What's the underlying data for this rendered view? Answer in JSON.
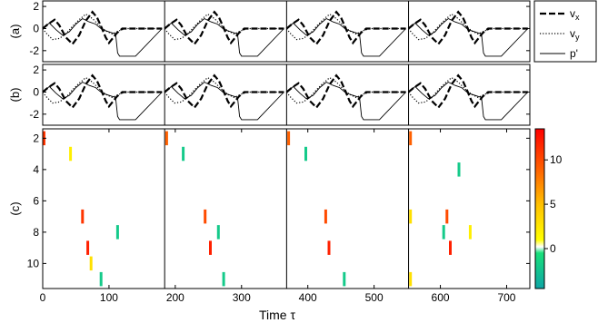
{
  "chart_data": [
    {
      "panel_label": "(a)",
      "type": "line",
      "xlim": [
        0,
        735
      ],
      "ylim": [
        -3,
        2.5
      ],
      "yticks": [
        2,
        0,
        -2
      ],
      "series": [
        {
          "name": "v",
          "subscript": "x",
          "style": "dashed",
          "x": [
            0,
            8,
            18,
            25,
            35,
            45,
            55,
            65,
            75,
            82,
            88,
            95,
            100,
            112,
            120,
            130,
            180
          ],
          "y": [
            0,
            0.4,
            0.8,
            0.3,
            -0.8,
            -1.4,
            -0.6,
            0.7,
            1.5,
            1.0,
            0.2,
            -0.8,
            -1.3,
            -0.4,
            0,
            0,
            0
          ]
        },
        {
          "name": "v",
          "subscript": "y",
          "style": "dotted",
          "x": [
            0,
            5,
            15,
            25,
            35,
            45,
            55,
            65,
            75,
            85,
            95,
            105,
            115,
            125,
            180
          ],
          "y": [
            0,
            -0.4,
            -1.0,
            -0.9,
            -0.5,
            0.2,
            0.8,
            1.3,
            0.9,
            0.3,
            -0.2,
            -0.5,
            -0.2,
            0,
            0
          ]
        },
        {
          "name": "p'",
          "subscript": "",
          "style": "solid",
          "x": [
            0,
            10,
            20,
            30,
            40,
            50,
            60,
            70,
            80,
            90,
            100,
            110,
            113,
            116,
            125,
            140,
            180
          ],
          "y": [
            0,
            0.5,
            -0.1,
            -0.6,
            -0.3,
            0.4,
            0.9,
            0.6,
            0.4,
            -0.1,
            -0.3,
            -0.5,
            -2.2,
            -2.5,
            -2.5,
            -2.5,
            0
          ]
        }
      ],
      "block_period": 184,
      "vlines": [
        184,
        368,
        552
      ]
    },
    {
      "panel_label": "(b)",
      "type": "line",
      "xlim": [
        0,
        735
      ],
      "ylim": [
        -3,
        2.5
      ],
      "yticks": [
        2,
        0,
        -2
      ],
      "series": [
        {
          "name": "v",
          "subscript": "x",
          "style": "dashed",
          "x": [
            0,
            8,
            18,
            25,
            35,
            45,
            55,
            65,
            75,
            82,
            88,
            95,
            100,
            112,
            120,
            130,
            180
          ],
          "y": [
            0,
            0.4,
            0.8,
            0.3,
            -0.8,
            -1.4,
            -0.6,
            0.7,
            1.5,
            1.0,
            0.2,
            -0.8,
            -1.3,
            -0.4,
            0,
            0,
            0
          ]
        },
        {
          "name": "v",
          "subscript": "y",
          "style": "dotted",
          "x": [
            0,
            5,
            15,
            25,
            35,
            45,
            55,
            65,
            75,
            85,
            95,
            105,
            115,
            125,
            180
          ],
          "y": [
            0,
            -0.4,
            -1.0,
            -0.9,
            -0.5,
            0.2,
            0.8,
            1.3,
            0.9,
            0.3,
            -0.2,
            -0.5,
            -0.2,
            0,
            0
          ]
        },
        {
          "name": "p'",
          "subscript": "",
          "style": "solid",
          "x": [
            0,
            10,
            20,
            30,
            40,
            50,
            60,
            70,
            80,
            90,
            100,
            110,
            113,
            116,
            125,
            140,
            180
          ],
          "y": [
            0,
            0.5,
            -0.1,
            -0.6,
            -0.3,
            0.4,
            0.9,
            0.6,
            0.4,
            -0.1,
            -0.3,
            -0.5,
            -2.2,
            -2.5,
            -2.5,
            -2.5,
            0
          ]
        }
      ],
      "block_period": 184,
      "vlines": [
        184,
        368,
        552
      ]
    },
    {
      "panel_label": "(c)",
      "type": "scatter",
      "xlim": [
        0,
        735
      ],
      "ylim": [
        11.6,
        1.4
      ],
      "xticks": [
        0,
        100,
        200,
        300,
        400,
        500,
        600,
        700
      ],
      "yticks": [
        2,
        4,
        6,
        8,
        10
      ],
      "xlabel": "Time τ",
      "marker_half_height": 0.45,
      "vlines": [
        184,
        368,
        552
      ],
      "points": [
        {
          "x": 2,
          "y": 2,
          "v": 11
        },
        {
          "x": 42,
          "y": 3,
          "v": 2
        },
        {
          "x": 60,
          "y": 7,
          "v": 11
        },
        {
          "x": 68,
          "y": 9,
          "v": 12
        },
        {
          "x": 73,
          "y": 10,
          "v": 3
        },
        {
          "x": 88,
          "y": 11,
          "v": -2
        },
        {
          "x": 113,
          "y": 8,
          "v": -2
        },
        {
          "x": 187,
          "y": 2,
          "v": 9
        },
        {
          "x": 212,
          "y": 3,
          "v": -2
        },
        {
          "x": 245,
          "y": 7,
          "v": 10
        },
        {
          "x": 253,
          "y": 9,
          "v": 12
        },
        {
          "x": 265,
          "y": 8,
          "v": -2
        },
        {
          "x": 273,
          "y": 11,
          "v": -2
        },
        {
          "x": 371,
          "y": 2,
          "v": 9
        },
        {
          "x": 397,
          "y": 3,
          "v": -2
        },
        {
          "x": 427,
          "y": 7,
          "v": 10
        },
        {
          "x": 432,
          "y": 9,
          "v": 12
        },
        {
          "x": 455,
          "y": 11,
          "v": -2
        },
        {
          "x": 555,
          "y": 2,
          "v": 9
        },
        {
          "x": 555,
          "y": 7,
          "v": 3
        },
        {
          "x": 555,
          "y": 11,
          "v": 3
        },
        {
          "x": 605,
          "y": 8,
          "v": -2
        },
        {
          "x": 610,
          "y": 7,
          "v": 10
        },
        {
          "x": 615,
          "y": 9,
          "v": 12
        },
        {
          "x": 628,
          "y": 4,
          "v": -2
        },
        {
          "x": 645,
          "y": 8,
          "v": 2
        }
      ],
      "colorbar": {
        "vmin": -4.5,
        "vmax": 13.5,
        "ticks": [
          10,
          5,
          0
        ],
        "stops": [
          {
            "v": -4.5,
            "color": "#0fa5a5"
          },
          {
            "v": -0.5,
            "color": "#18e07a"
          },
          {
            "v": 0.2,
            "color": "#ffffff"
          },
          {
            "v": 1.0,
            "color": "#ffff00"
          },
          {
            "v": 5.0,
            "color": "#ffc000"
          },
          {
            "v": 9.0,
            "color": "#ff6000"
          },
          {
            "v": 13.5,
            "color": "#ff0000"
          }
        ]
      }
    }
  ]
}
